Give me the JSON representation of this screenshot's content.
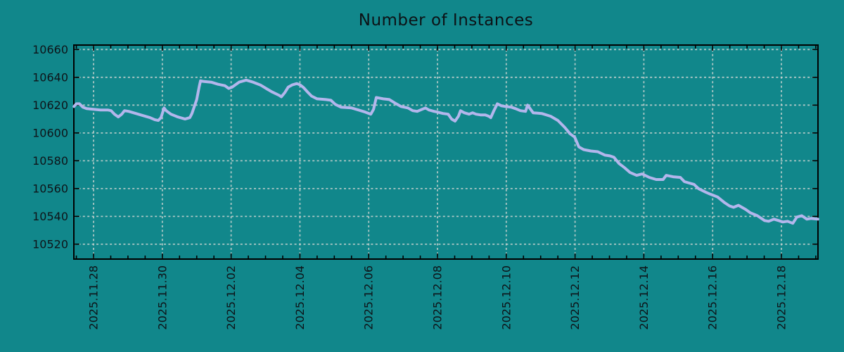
{
  "colors": {
    "background": "#11878b",
    "line": "#b3b6ec",
    "grid": "#c9d3d0",
    "axis": "#000000",
    "text": "#0e1419"
  },
  "chart_data": {
    "type": "line",
    "title": "Number of Instances",
    "xlabel": "",
    "ylabel": "",
    "grid": true,
    "legend_position": "none",
    "x_axis": {
      "tick_labels": [
        "2025.11.28",
        "2025.11.30",
        "2025.12.02",
        "2025.12.04",
        "2025.12.06",
        "2025.12.08",
        "2025.12.10",
        "2025.12.12",
        "2025.12.14",
        "2025.12.16",
        "2025.12.18"
      ],
      "tick_days": [
        0,
        2,
        4,
        6,
        8,
        10,
        12,
        14,
        16,
        18,
        20
      ],
      "minor_tick_step_days": 0.5,
      "range_days": [
        -0.573,
        21.063
      ]
    },
    "y_axis": {
      "ticks": [
        10520,
        10540,
        10560,
        10580,
        10600,
        10620,
        10640,
        10660
      ],
      "range": [
        10509.3,
        10663.2
      ]
    },
    "series": [
      {
        "name": "Number of Instances",
        "color": "#b3b6ec",
        "points": [
          [
            -0.57,
            10619
          ],
          [
            -0.5,
            10621
          ],
          [
            -0.41,
            10621
          ],
          [
            -0.31,
            10618.5
          ],
          [
            -0.2,
            10617.5
          ],
          [
            0,
            10617
          ],
          [
            0.2,
            10616.5
          ],
          [
            0.41,
            10616.5
          ],
          [
            0.51,
            10616
          ],
          [
            0.61,
            10613.5
          ],
          [
            0.72,
            10611.5
          ],
          [
            0.82,
            10613.5
          ],
          [
            0.9,
            10616
          ],
          [
            1.02,
            10615.5
          ],
          [
            1.23,
            10614
          ],
          [
            1.43,
            10612.5
          ],
          [
            1.64,
            10611
          ],
          [
            1.78,
            10609.5
          ],
          [
            1.88,
            10609
          ],
          [
            1.96,
            10611
          ],
          [
            2.05,
            10618
          ],
          [
            2.11,
            10616
          ],
          [
            2.25,
            10613.5
          ],
          [
            2.45,
            10611.5
          ],
          [
            2.66,
            10610
          ],
          [
            2.8,
            10611
          ],
          [
            2.86,
            10614
          ],
          [
            3.0,
            10624
          ],
          [
            3.07,
            10633
          ],
          [
            3.11,
            10637.5
          ],
          [
            3.21,
            10637
          ],
          [
            3.42,
            10636.5
          ],
          [
            3.62,
            10635
          ],
          [
            3.82,
            10634
          ],
          [
            3.93,
            10632
          ],
          [
            4.03,
            10633
          ],
          [
            4.23,
            10636.5
          ],
          [
            4.44,
            10638
          ],
          [
            4.64,
            10636.5
          ],
          [
            4.85,
            10634.5
          ],
          [
            5.05,
            10631.5
          ],
          [
            5.19,
            10629.5
          ],
          [
            5.4,
            10627
          ],
          [
            5.46,
            10626
          ],
          [
            5.56,
            10629
          ],
          [
            5.66,
            10633
          ],
          [
            5.77,
            10634.5
          ],
          [
            5.91,
            10635.5
          ],
          [
            6.01,
            10634.5
          ],
          [
            6.11,
            10632.5
          ],
          [
            6.22,
            10629.5
          ],
          [
            6.34,
            10626.5
          ],
          [
            6.5,
            10624.5
          ],
          [
            6.75,
            10624
          ],
          [
            6.9,
            10623.5
          ],
          [
            7.03,
            10620.5
          ],
          [
            7.2,
            10618.5
          ],
          [
            7.5,
            10618
          ],
          [
            7.7,
            10616.5
          ],
          [
            7.9,
            10615
          ],
          [
            8.06,
            10613.5
          ],
          [
            8.14,
            10617
          ],
          [
            8.22,
            10625.5
          ],
          [
            8.42,
            10624.5
          ],
          [
            8.6,
            10624
          ],
          [
            8.8,
            10621
          ],
          [
            8.94,
            10619
          ],
          [
            9.14,
            10618
          ],
          [
            9.28,
            10616
          ],
          [
            9.41,
            10615.5
          ],
          [
            9.55,
            10617
          ],
          [
            9.65,
            10618
          ],
          [
            9.75,
            10616.5
          ],
          [
            9.9,
            10615.5
          ],
          [
            10.0,
            10615
          ],
          [
            10.16,
            10614
          ],
          [
            10.31,
            10613.5
          ],
          [
            10.41,
            10610
          ],
          [
            10.51,
            10608.5
          ],
          [
            10.61,
            10612
          ],
          [
            10.67,
            10616
          ],
          [
            10.78,
            10614.5
          ],
          [
            10.92,
            10613.5
          ],
          [
            11.02,
            10614.5
          ],
          [
            11.12,
            10613.5
          ],
          [
            11.25,
            10613
          ],
          [
            11.39,
            10613
          ],
          [
            11.49,
            10612
          ],
          [
            11.55,
            10611
          ],
          [
            11.64,
            10616
          ],
          [
            11.74,
            10621
          ],
          [
            11.86,
            10619.5
          ],
          [
            11.98,
            10619
          ],
          [
            12.15,
            10618.5
          ],
          [
            12.27,
            10617.5
          ],
          [
            12.41,
            10616
          ],
          [
            12.56,
            10615.5
          ],
          [
            12.62,
            10620
          ],
          [
            12.78,
            10614.5
          ],
          [
            13.03,
            10614
          ],
          [
            13.29,
            10612
          ],
          [
            13.5,
            10609
          ],
          [
            13.7,
            10604
          ],
          [
            13.85,
            10599.5
          ],
          [
            13.99,
            10597
          ],
          [
            14.11,
            10590
          ],
          [
            14.25,
            10588
          ],
          [
            14.46,
            10587
          ],
          [
            14.66,
            10586.5
          ],
          [
            14.87,
            10584
          ],
          [
            15.01,
            10583.5
          ],
          [
            15.13,
            10582.5
          ],
          [
            15.28,
            10578
          ],
          [
            15.44,
            10575
          ],
          [
            15.6,
            10571.5
          ],
          [
            15.79,
            10569.5
          ],
          [
            15.95,
            10570.5
          ],
          [
            16.16,
            10568
          ],
          [
            16.36,
            10566.5
          ],
          [
            16.56,
            10566.5
          ],
          [
            16.65,
            10569.5
          ],
          [
            16.85,
            10568.5
          ],
          [
            17.06,
            10568
          ],
          [
            17.18,
            10565
          ],
          [
            17.32,
            10564
          ],
          [
            17.46,
            10563
          ],
          [
            17.59,
            10560
          ],
          [
            17.79,
            10557.5
          ],
          [
            17.93,
            10556
          ],
          [
            18.14,
            10554
          ],
          [
            18.34,
            10550
          ],
          [
            18.49,
            10547.5
          ],
          [
            18.61,
            10546.5
          ],
          [
            18.75,
            10548
          ],
          [
            18.96,
            10545
          ],
          [
            19.1,
            10542.5
          ],
          [
            19.3,
            10540.5
          ],
          [
            19.51,
            10537
          ],
          [
            19.63,
            10536.5
          ],
          [
            19.78,
            10538
          ],
          [
            19.92,
            10537
          ],
          [
            20.04,
            10536
          ],
          [
            20.18,
            10536.5
          ],
          [
            20.33,
            10535
          ],
          [
            20.45,
            10539.5
          ],
          [
            20.59,
            10540.5
          ],
          [
            20.74,
            10538
          ],
          [
            20.86,
            10538.5
          ],
          [
            21.06,
            10538
          ]
        ]
      }
    ]
  }
}
